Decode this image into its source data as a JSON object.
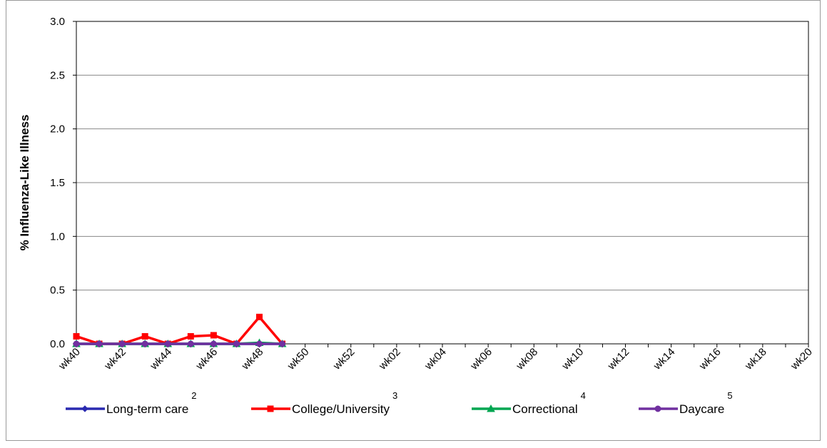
{
  "chart_data": {
    "type": "line",
    "y_label": "% Influenza-Like Illness",
    "categories": [
      "wk40",
      null,
      "wk42",
      null,
      "wk44",
      null,
      "wk46",
      null,
      "wk48",
      null,
      "wk50",
      null,
      "wk52",
      null,
      "wk02",
      null,
      "wk04",
      null,
      "wk06",
      null,
      "wk08",
      null,
      "wk10",
      null,
      "wk12",
      null,
      "wk14",
      null,
      "wk16",
      null,
      "wk18",
      null,
      "wk20"
    ],
    "series": [
      {
        "name": "Long-term care",
        "note": "2",
        "color": "#2a2ab0",
        "marker": "diamond",
        "values": [
          0,
          0,
          0,
          0,
          0,
          0,
          0,
          0,
          0,
          0,
          null,
          null,
          null,
          null,
          null,
          null,
          null,
          null,
          null,
          null,
          null,
          null,
          null,
          null,
          null,
          null,
          null,
          null,
          null,
          null,
          null,
          null,
          null
        ]
      },
      {
        "name": "College/University",
        "note": "3",
        "color": "#ff0000",
        "marker": "square",
        "values": [
          0.07,
          0,
          0,
          0.07,
          0,
          0.07,
          0.08,
          0,
          0.25,
          0,
          null,
          null,
          null,
          null,
          null,
          null,
          null,
          null,
          null,
          null,
          null,
          null,
          null,
          null,
          null,
          null,
          null,
          null,
          null,
          null,
          null,
          null,
          null
        ]
      },
      {
        "name": "Correctional",
        "note": "4",
        "color": "#00a651",
        "marker": "triangle",
        "values": [
          0,
          0,
          0,
          0,
          0,
          0,
          0,
          0,
          0.01,
          0,
          null,
          null,
          null,
          null,
          null,
          null,
          null,
          null,
          null,
          null,
          null,
          null,
          null,
          null,
          null,
          null,
          null,
          null,
          null,
          null,
          null,
          null,
          null
        ]
      },
      {
        "name": "Daycare",
        "note": "5",
        "color": "#7030a0",
        "marker": "circle",
        "values": [
          0,
          0,
          0,
          0,
          0,
          0,
          0,
          0,
          0,
          0,
          null,
          null,
          null,
          null,
          null,
          null,
          null,
          null,
          null,
          null,
          null,
          null,
          null,
          null,
          null,
          null,
          null,
          null,
          null,
          null,
          null,
          null,
          null
        ]
      }
    ],
    "ylim": [
      0,
      3
    ],
    "yticks": [
      {
        "value": 0,
        "label": "0.0"
      },
      {
        "value": 0.5,
        "label": "0.5"
      },
      {
        "value": 1,
        "label": "1.0"
      },
      {
        "value": 1.5,
        "label": "1.5"
      },
      {
        "value": 2,
        "label": "2.0"
      },
      {
        "value": 2.5,
        "label": "2.5"
      },
      {
        "value": 3,
        "label": "3.0"
      }
    ],
    "grid": true
  }
}
